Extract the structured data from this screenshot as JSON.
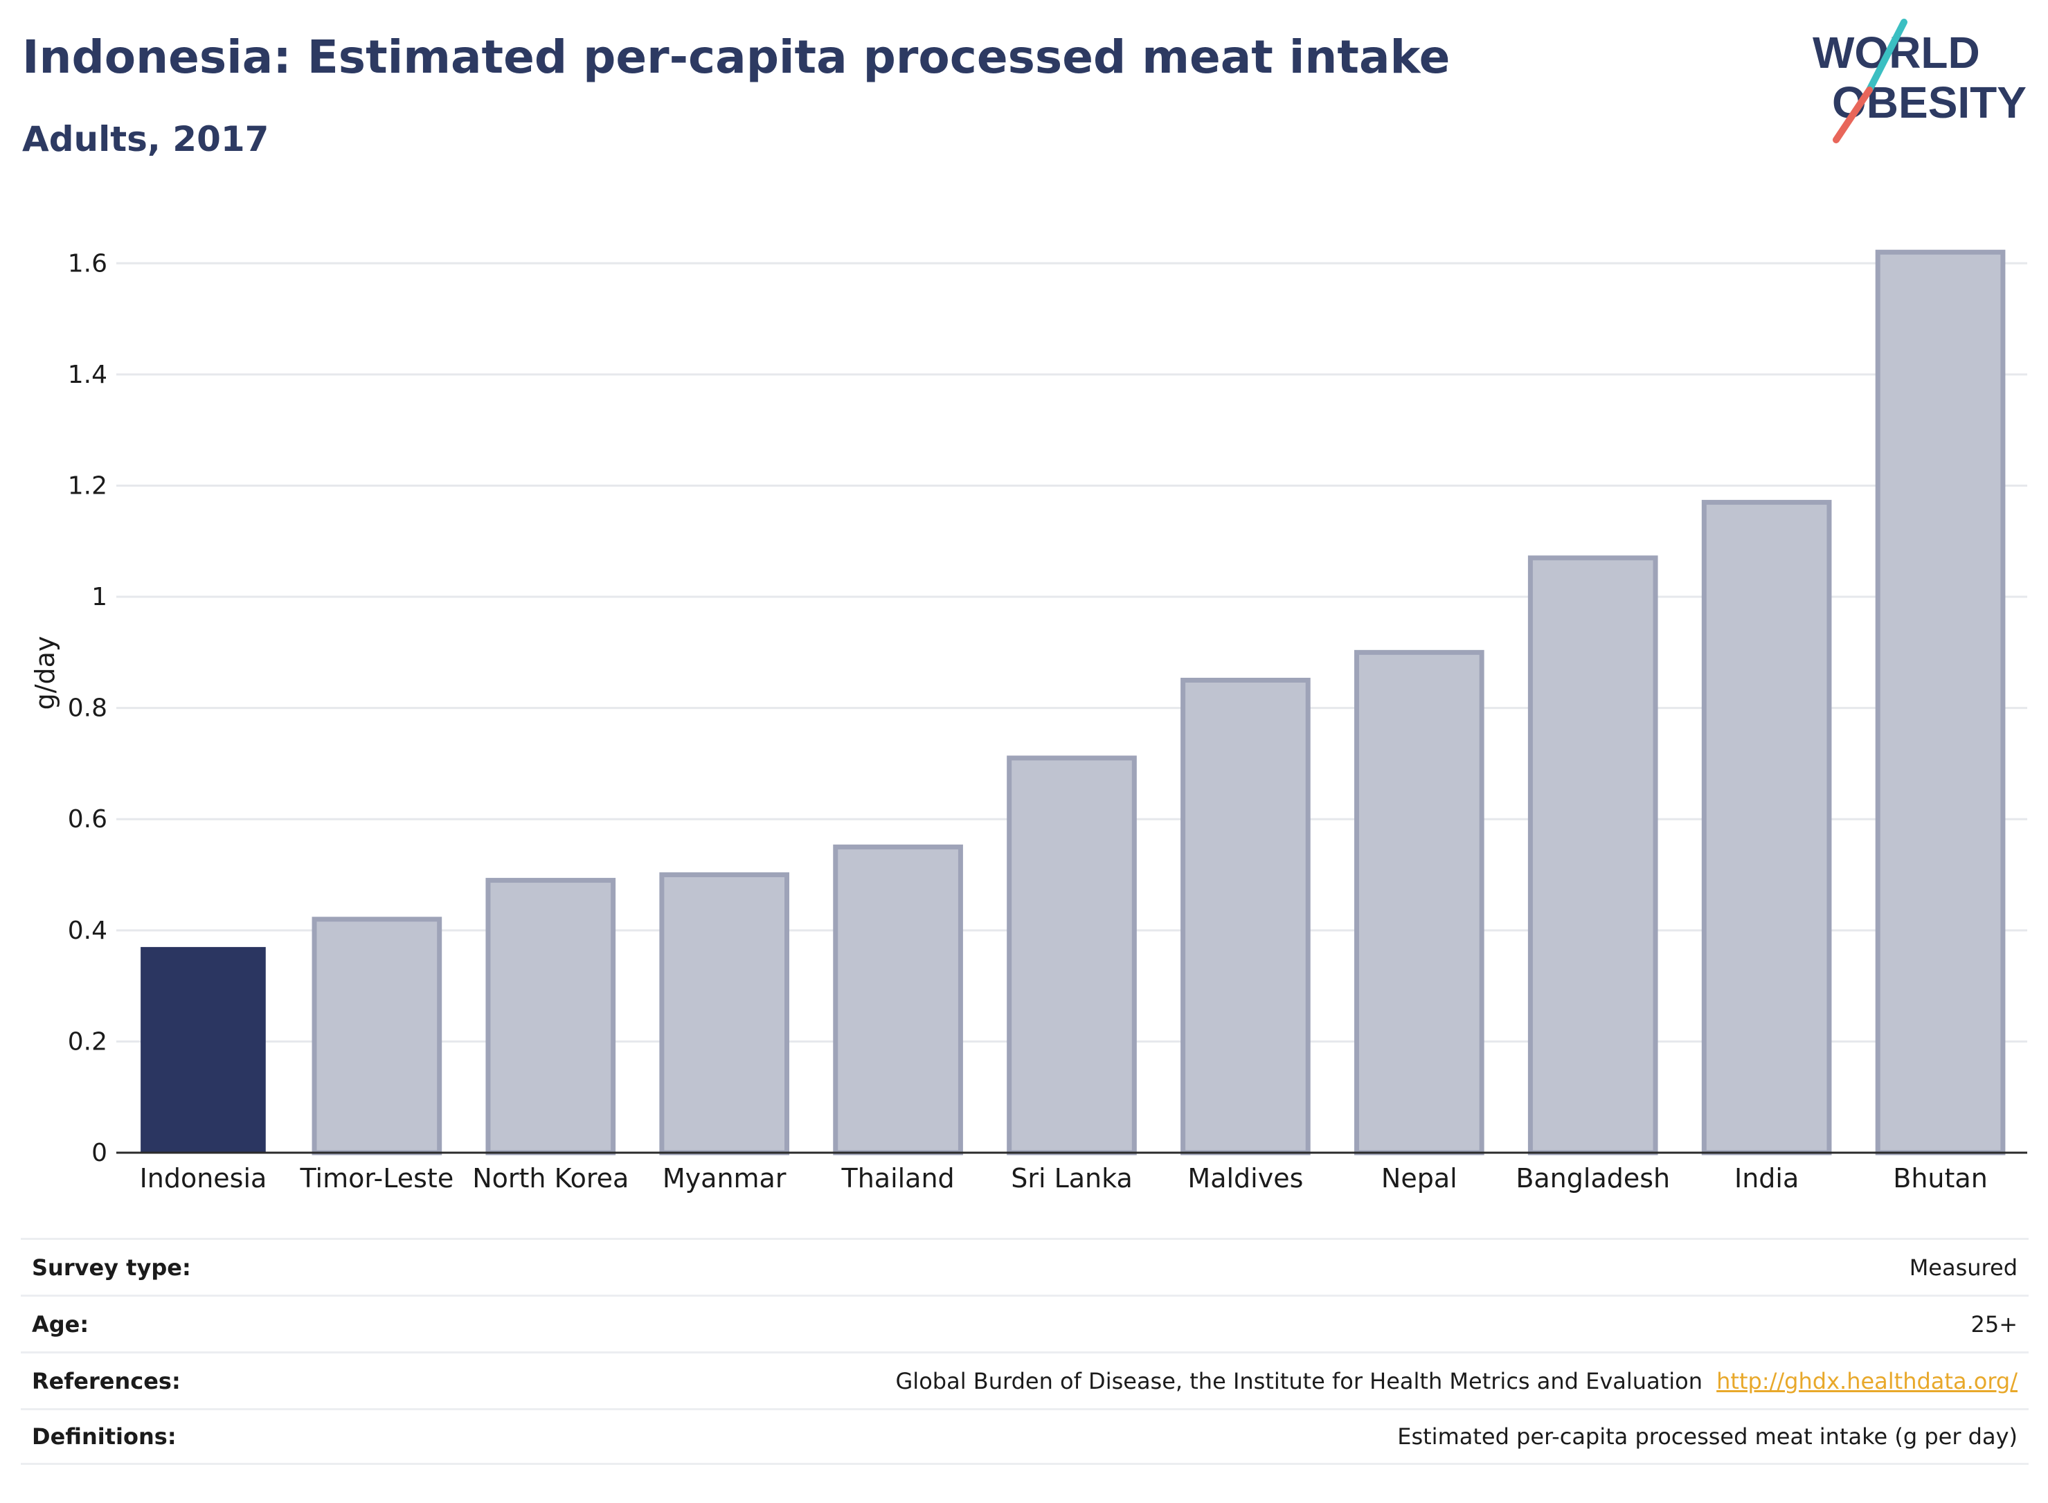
{
  "header": {
    "title": "Indonesia: Estimated per-capita processed meat intake",
    "subtitle": "Adults, 2017"
  },
  "logo": {
    "line1": "WORLD",
    "line2": "OBESITY",
    "colors": {
      "text": "#2d3a62",
      "slash_top": "#3bbfc2",
      "slash_bottom": "#e8665a"
    }
  },
  "chart_data": {
    "type": "bar",
    "categories": [
      "Indonesia",
      "Timor-Leste",
      "North Korea",
      "Myanmar",
      "Thailand",
      "Sri Lanka",
      "Maldives",
      "Nepal",
      "Bangladesh",
      "India",
      "Bhutan"
    ],
    "values": [
      0.37,
      0.42,
      0.49,
      0.5,
      0.55,
      0.71,
      0.85,
      0.9,
      1.07,
      1.17,
      1.62
    ],
    "highlight": "Indonesia",
    "ylabel": "g/day",
    "xlabel": "",
    "ylim": [
      0,
      1.7
    ],
    "yticks": [
      0,
      0.2,
      0.4,
      0.6,
      0.8,
      1,
      1.2,
      1.4,
      1.6
    ],
    "ytick_labels": [
      "0",
      "0.2",
      "0.4",
      "0.6",
      "0.8",
      "1",
      "1.2",
      "1.4",
      "1.6"
    ],
    "grid": true,
    "colors": {
      "highlight": "#2b3661",
      "other_fill": "#bfc3d0",
      "other_stroke": "#9ea3b8",
      "grid": "#e6e8ec",
      "axis": "#2b2b2b"
    }
  },
  "info": [
    {
      "key": "Survey type:",
      "value": "Measured"
    },
    {
      "key": "Age:",
      "value": "25+"
    },
    {
      "key": "References:",
      "value": "Global Burden of Disease, the Institute for Health Metrics and Evaluation",
      "link": "http://ghdx.healthdata.org/"
    },
    {
      "key": "Definitions:",
      "value": "Estimated per-capita processed meat intake (g per day)"
    }
  ]
}
